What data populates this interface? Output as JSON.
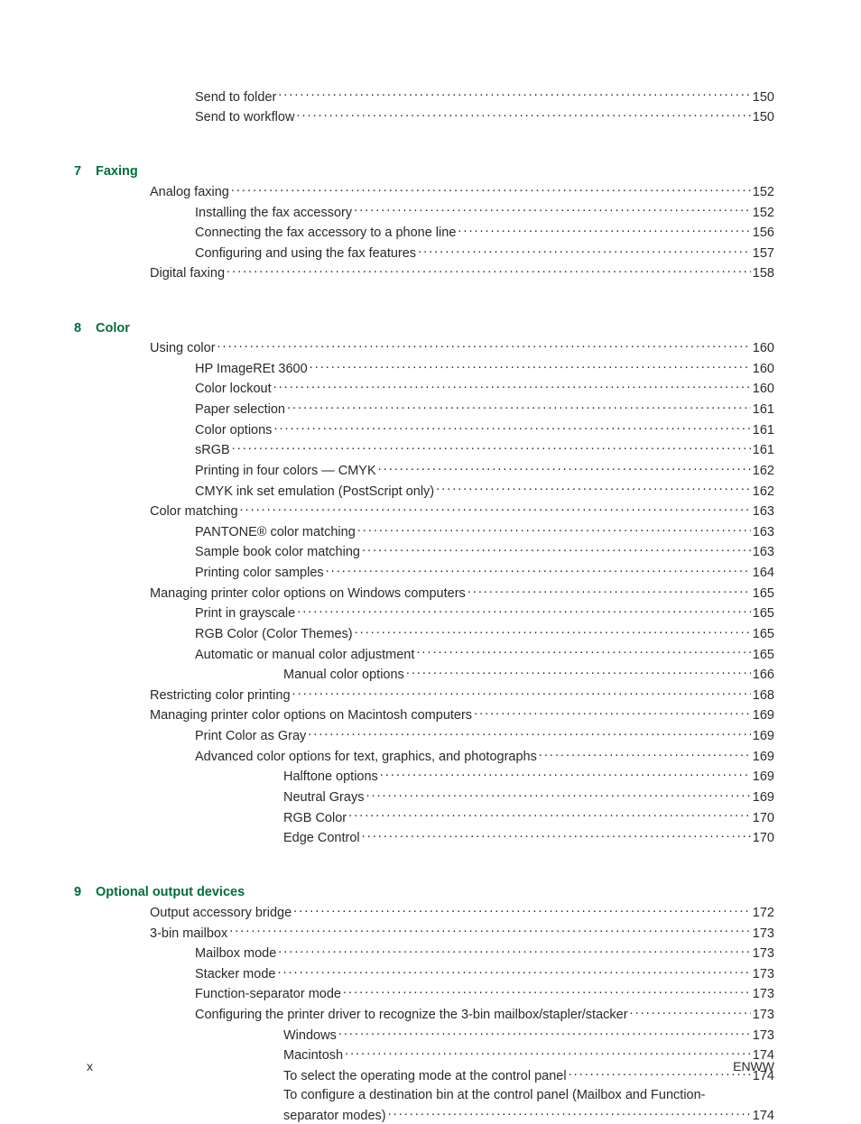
{
  "colors": {
    "heading": "#006f3a",
    "text": "#2a2a2a",
    "background": "#ffffff",
    "leader": "#2a2a2a"
  },
  "typography": {
    "body_font": "Arial",
    "body_size_pt": 11,
    "heading_weight": "bold"
  },
  "top_entries": [
    {
      "label": "Send to folder",
      "page": "150",
      "indent": "top-block"
    },
    {
      "label": "Send to workflow",
      "page": "150",
      "indent": "top-block"
    }
  ],
  "sections": [
    {
      "num": "7",
      "title": "Faxing",
      "entries": [
        {
          "label": "Analog faxing",
          "page": "152",
          "indent": "ind-a"
        },
        {
          "label": "Installing the fax accessory",
          "page": "152",
          "indent": "ind-b"
        },
        {
          "label": "Connecting the fax accessory to a phone line",
          "page": "156",
          "indent": "ind-b"
        },
        {
          "label": "Configuring and using the fax features",
          "page": "157",
          "indent": "ind-b"
        },
        {
          "label": "Digital faxing",
          "page": "158",
          "indent": "ind-a"
        }
      ]
    },
    {
      "num": "8",
      "title": "Color",
      "entries": [
        {
          "label": "Using color",
          "page": "160",
          "indent": "ind-a"
        },
        {
          "label": "HP ImageREt 3600",
          "page": "160",
          "indent": "ind-b"
        },
        {
          "label": "Color lockout",
          "page": "160",
          "indent": "ind-b"
        },
        {
          "label": "Paper selection",
          "page": "161",
          "indent": "ind-b"
        },
        {
          "label": "Color options",
          "page": "161",
          "indent": "ind-b"
        },
        {
          "label": "sRGB",
          "page": "161",
          "indent": "ind-b"
        },
        {
          "label": "Printing in four colors — CMYK",
          "page": "162",
          "indent": "ind-b"
        },
        {
          "label": "CMYK ink set emulation (PostScript only)",
          "page": "162",
          "indent": "ind-b"
        },
        {
          "label": "Color matching",
          "page": "163",
          "indent": "ind-a"
        },
        {
          "label": "PANTONE® color matching",
          "page": "163",
          "indent": "ind-b"
        },
        {
          "label": "Sample book color matching",
          "page": "163",
          "indent": "ind-b"
        },
        {
          "label": "Printing color samples",
          "page": "164",
          "indent": "ind-b"
        },
        {
          "label": "Managing printer color options on Windows computers",
          "page": "165",
          "indent": "ind-a"
        },
        {
          "label": "Print in grayscale",
          "page": "165",
          "indent": "ind-b"
        },
        {
          "label": "RGB Color (Color Themes)",
          "page": "165",
          "indent": "ind-b"
        },
        {
          "label": "Automatic or manual color adjustment",
          "page": "165",
          "indent": "ind-b"
        },
        {
          "label": "Manual color options",
          "page": "166",
          "indent": "ind-c"
        },
        {
          "label": "Restricting color printing",
          "page": "168",
          "indent": "ind-a"
        },
        {
          "label": "Managing printer color options on Macintosh computers",
          "page": "169",
          "indent": "ind-a"
        },
        {
          "label": "Print Color as Gray",
          "page": "169",
          "indent": "ind-b"
        },
        {
          "label": "Advanced color options for text, graphics, and photographs",
          "page": "169",
          "indent": "ind-b"
        },
        {
          "label": "Halftone options",
          "page": "169",
          "indent": "ind-c"
        },
        {
          "label": "Neutral Grays",
          "page": "169",
          "indent": "ind-c"
        },
        {
          "label": "RGB Color",
          "page": "170",
          "indent": "ind-c"
        },
        {
          "label": "Edge Control",
          "page": "170",
          "indent": "ind-c"
        }
      ]
    },
    {
      "num": "9",
      "title": "Optional output devices",
      "entries": [
        {
          "label": "Output accessory bridge",
          "page": "172",
          "indent": "ind-a"
        },
        {
          "label": "3-bin mailbox",
          "page": "173",
          "indent": "ind-a"
        },
        {
          "label": "Mailbox mode",
          "page": "173",
          "indent": "ind-b"
        },
        {
          "label": "Stacker mode",
          "page": "173",
          "indent": "ind-b"
        },
        {
          "label": "Function-separator mode",
          "page": "173",
          "indent": "ind-b"
        },
        {
          "label": "Configuring the printer driver to recognize the 3-bin mailbox/stapler/stacker",
          "page": "173",
          "indent": "ind-b"
        },
        {
          "label": "Windows",
          "page": "173",
          "indent": "ind-c"
        },
        {
          "label": "Macintosh",
          "page": "174",
          "indent": "ind-c"
        },
        {
          "label": "To select the operating mode at the control panel",
          "page": "174",
          "indent": "ind-c"
        },
        {
          "label_part1": "To configure a destination bin at the control panel (Mailbox and Function-",
          "label_part2": "separator modes)",
          "page": "174",
          "indent": "ind-c",
          "wrap": true
        }
      ]
    }
  ],
  "footer": {
    "left": "x",
    "right": "ENWW"
  }
}
